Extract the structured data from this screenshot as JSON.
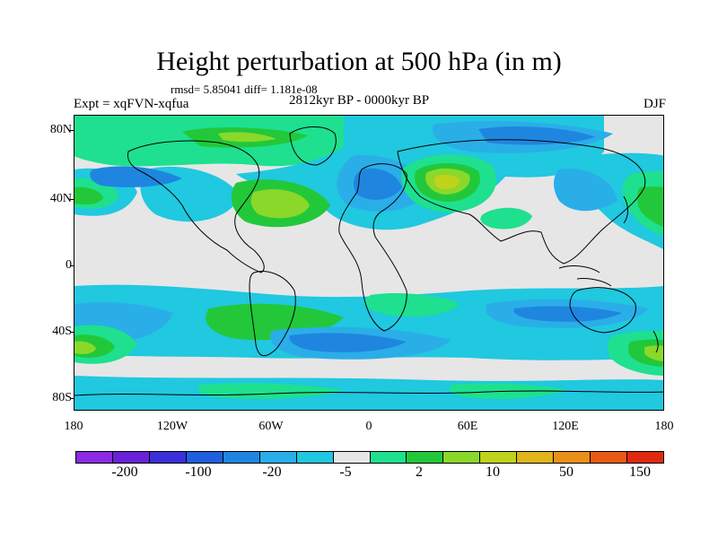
{
  "title": "Height perturbation at 500 hPa (in m)",
  "stats": "rmsd= 5.85041 diff= 1.181e-08",
  "experiment": "Expt = xqFVN-xqfua",
  "period": "2812kyr BP - 0000kyr BP",
  "season": "DJF",
  "lat_labels": [
    "80N",
    "40N",
    "0",
    "40S",
    "80S"
  ],
  "lon_labels": [
    "180",
    "120W",
    "60W",
    "0",
    "60E",
    "120E",
    "180"
  ],
  "colorbar": {
    "colors": [
      "#8a2be2",
      "#6a22d8",
      "#3a2fd9",
      "#1f5fdd",
      "#1f86e0",
      "#2aaee8",
      "#20c8e0",
      "#e6e6e6",
      "#1ee08f",
      "#22c83a",
      "#8ad82a",
      "#bfd21c",
      "#e0b41a",
      "#e89018",
      "#e85a14",
      "#e02a10"
    ],
    "labels": [
      "-200",
      "-100",
      "-20",
      "-5",
      "2",
      "10",
      "50",
      "150"
    ]
  },
  "map_legend": {
    "background": "#e6e6e6",
    "coast": "#000000"
  }
}
